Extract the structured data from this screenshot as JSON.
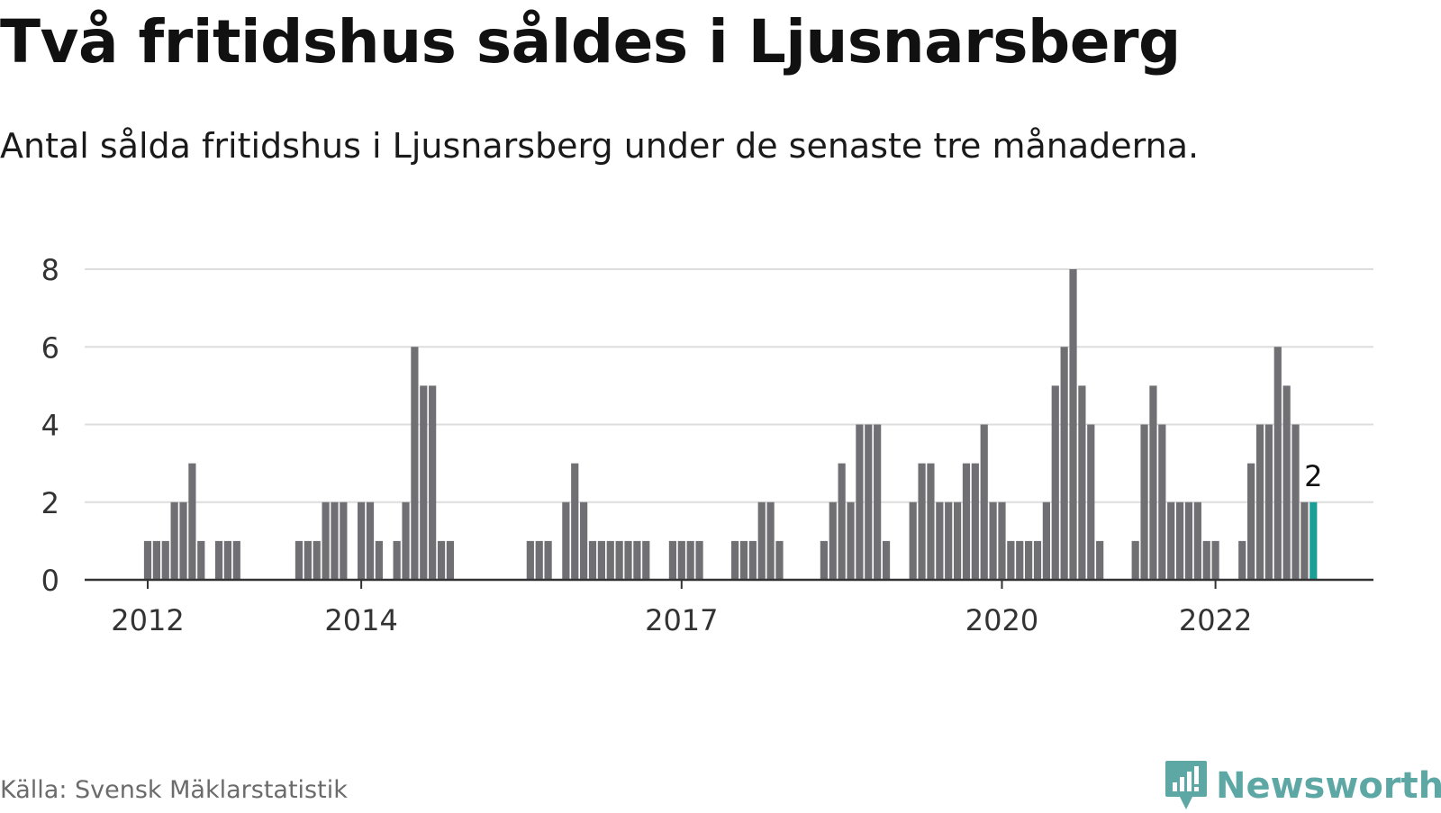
{
  "title": "Två fritidshus såldes i Ljusnarsberg",
  "subtitle": "Antal sålda fritidshus i Ljusnarsberg under de senaste tre månaderna.",
  "source": "Källa: Svensk Mäklarstatistik",
  "brand": "Newsworthy",
  "colors": {
    "bar": "#707074",
    "highlight": "#1a9e96",
    "grid": "#dddddd",
    "axis": "#333333",
    "brand": "#5da8a5"
  },
  "chart_data": {
    "type": "bar",
    "x_start": "2011-07",
    "x_end": "2023-04",
    "x_tick_labels": [
      {
        "label": "2012",
        "x": "2012-01"
      },
      {
        "label": "2014",
        "x": "2014-01"
      },
      {
        "label": "2017",
        "x": "2017-01"
      },
      {
        "label": "2020",
        "x": "2020-01"
      },
      {
        "label": "2022",
        "x": "2022-01"
      }
    ],
    "y_ticks": [
      0,
      2,
      4,
      6,
      8
    ],
    "ylim": [
      0,
      8
    ],
    "grid": true,
    "highlight_label": "2",
    "bars": [
      {
        "x": "2012-01",
        "y": 1
      },
      {
        "x": "2012-02",
        "y": 1
      },
      {
        "x": "2012-03",
        "y": 1
      },
      {
        "x": "2012-04",
        "y": 2
      },
      {
        "x": "2012-05",
        "y": 2
      },
      {
        "x": "2012-06",
        "y": 3
      },
      {
        "x": "2012-07",
        "y": 1
      },
      {
        "x": "2012-09",
        "y": 1
      },
      {
        "x": "2012-10",
        "y": 1
      },
      {
        "x": "2012-11",
        "y": 1
      },
      {
        "x": "2013-06",
        "y": 1
      },
      {
        "x": "2013-07",
        "y": 1
      },
      {
        "x": "2013-08",
        "y": 1
      },
      {
        "x": "2013-09",
        "y": 2
      },
      {
        "x": "2013-10",
        "y": 2
      },
      {
        "x": "2013-11",
        "y": 2
      },
      {
        "x": "2014-01",
        "y": 2
      },
      {
        "x": "2014-02",
        "y": 2
      },
      {
        "x": "2014-03",
        "y": 1
      },
      {
        "x": "2014-05",
        "y": 1
      },
      {
        "x": "2014-06",
        "y": 2
      },
      {
        "x": "2014-07",
        "y": 6
      },
      {
        "x": "2014-08",
        "y": 5
      },
      {
        "x": "2014-09",
        "y": 5
      },
      {
        "x": "2014-10",
        "y": 1
      },
      {
        "x": "2014-11",
        "y": 1
      },
      {
        "x": "2015-08",
        "y": 1
      },
      {
        "x": "2015-09",
        "y": 1
      },
      {
        "x": "2015-10",
        "y": 1
      },
      {
        "x": "2015-12",
        "y": 2
      },
      {
        "x": "2016-01",
        "y": 3
      },
      {
        "x": "2016-02",
        "y": 2
      },
      {
        "x": "2016-03",
        "y": 1
      },
      {
        "x": "2016-04",
        "y": 1
      },
      {
        "x": "2016-05",
        "y": 1
      },
      {
        "x": "2016-06",
        "y": 1
      },
      {
        "x": "2016-07",
        "y": 1
      },
      {
        "x": "2016-08",
        "y": 1
      },
      {
        "x": "2016-09",
        "y": 1
      },
      {
        "x": "2016-12",
        "y": 1
      },
      {
        "x": "2017-01",
        "y": 1
      },
      {
        "x": "2017-02",
        "y": 1
      },
      {
        "x": "2017-03",
        "y": 1
      },
      {
        "x": "2017-07",
        "y": 1
      },
      {
        "x": "2017-08",
        "y": 1
      },
      {
        "x": "2017-09",
        "y": 1
      },
      {
        "x": "2017-10",
        "y": 2
      },
      {
        "x": "2017-11",
        "y": 2
      },
      {
        "x": "2017-12",
        "y": 1
      },
      {
        "x": "2018-05",
        "y": 1
      },
      {
        "x": "2018-06",
        "y": 2
      },
      {
        "x": "2018-07",
        "y": 3
      },
      {
        "x": "2018-08",
        "y": 2
      },
      {
        "x": "2018-09",
        "y": 4
      },
      {
        "x": "2018-10",
        "y": 4
      },
      {
        "x": "2018-11",
        "y": 4
      },
      {
        "x": "2018-12",
        "y": 1
      },
      {
        "x": "2019-03",
        "y": 2
      },
      {
        "x": "2019-04",
        "y": 3
      },
      {
        "x": "2019-05",
        "y": 3
      },
      {
        "x": "2019-06",
        "y": 2
      },
      {
        "x": "2019-07",
        "y": 2
      },
      {
        "x": "2019-08",
        "y": 2
      },
      {
        "x": "2019-09",
        "y": 3
      },
      {
        "x": "2019-10",
        "y": 3
      },
      {
        "x": "2019-11",
        "y": 4
      },
      {
        "x": "2019-12",
        "y": 2
      },
      {
        "x": "2020-01",
        "y": 2
      },
      {
        "x": "2020-02",
        "y": 1
      },
      {
        "x": "2020-03",
        "y": 1
      },
      {
        "x": "2020-04",
        "y": 1
      },
      {
        "x": "2020-05",
        "y": 1
      },
      {
        "x": "2020-06",
        "y": 2
      },
      {
        "x": "2020-07",
        "y": 5
      },
      {
        "x": "2020-08",
        "y": 6
      },
      {
        "x": "2020-09",
        "y": 8
      },
      {
        "x": "2020-10",
        "y": 5
      },
      {
        "x": "2020-11",
        "y": 4
      },
      {
        "x": "2020-12",
        "y": 1
      },
      {
        "x": "2021-04",
        "y": 1
      },
      {
        "x": "2021-05",
        "y": 4
      },
      {
        "x": "2021-06",
        "y": 5
      },
      {
        "x": "2021-07",
        "y": 4
      },
      {
        "x": "2021-08",
        "y": 2
      },
      {
        "x": "2021-09",
        "y": 2
      },
      {
        "x": "2021-10",
        "y": 2
      },
      {
        "x": "2021-11",
        "y": 2
      },
      {
        "x": "2021-12",
        "y": 1
      },
      {
        "x": "2022-01",
        "y": 1
      },
      {
        "x": "2022-04",
        "y": 1
      },
      {
        "x": "2022-05",
        "y": 3
      },
      {
        "x": "2022-06",
        "y": 4
      },
      {
        "x": "2022-07",
        "y": 4
      },
      {
        "x": "2022-08",
        "y": 6
      },
      {
        "x": "2022-09",
        "y": 5
      },
      {
        "x": "2022-10",
        "y": 4
      },
      {
        "x": "2022-11",
        "y": 2
      },
      {
        "x": "2022-12",
        "y": 2,
        "highlight": true
      }
    ]
  }
}
